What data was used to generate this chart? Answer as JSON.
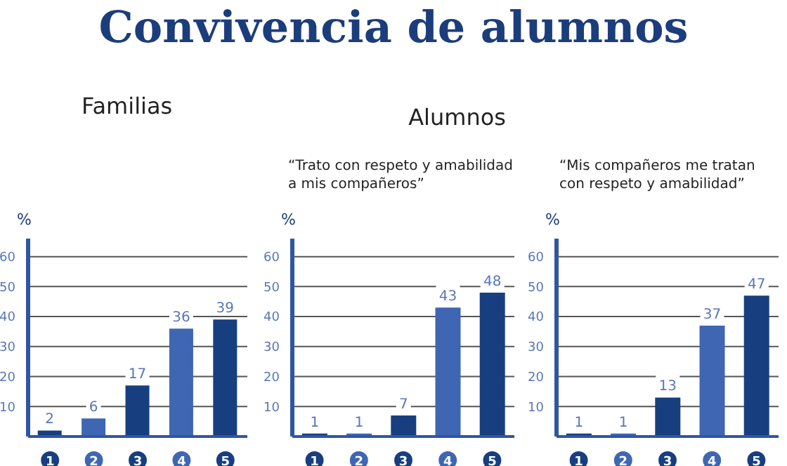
{
  "chart_data": [
    {
      "type": "bar",
      "title": "Familias",
      "annotations": [
        "Convivencia de alumnos"
      ],
      "ylabel": "%",
      "categories": [
        "1",
        "2",
        "3",
        "4",
        "5"
      ],
      "values": [
        2,
        6,
        17,
        36,
        39
      ],
      "colors": [
        "#173f80",
        "#3f66b3",
        "#173f80",
        "#3f66b3",
        "#173f80"
      ],
      "ylim": [
        0,
        66
      ],
      "yticks": [
        10,
        20,
        30,
        40,
        50,
        60
      ],
      "grid": "y",
      "data_labels": true
    },
    {
      "type": "bar",
      "title": "“Trato con respeto y amabilidad a mis compañeros”",
      "annotations": [
        "Alumnos"
      ],
      "ylabel": "%",
      "categories": [
        "1",
        "2",
        "3",
        "4",
        "5"
      ],
      "values": [
        1,
        1,
        7,
        43,
        48
      ],
      "colors": [
        "#173f80",
        "#3f66b3",
        "#173f80",
        "#3f66b3",
        "#173f80"
      ],
      "ylim": [
        0,
        66
      ],
      "yticks": [
        10,
        20,
        30,
        40,
        50,
        60
      ],
      "grid": "y",
      "data_labels": true
    },
    {
      "type": "bar",
      "title": "“Mis compañeros me tratan con respeto y amabilidad”",
      "ylabel": "%",
      "categories": [
        "1",
        "2",
        "3",
        "4",
        "5"
      ],
      "values": [
        1,
        1,
        13,
        37,
        47
      ],
      "colors": [
        "#173f80",
        "#3f66b3",
        "#173f80",
        "#3f66b3",
        "#173f80"
      ],
      "ylim": [
        0,
        66
      ],
      "yticks": [
        10,
        20,
        30,
        40,
        50,
        60
      ],
      "grid": "y",
      "data_labels": true
    }
  ]
}
